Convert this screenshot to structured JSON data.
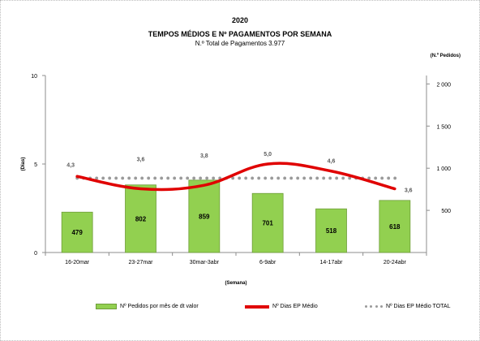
{
  "title": "2020",
  "subtitle": "TEMPOS MÉDIOS E Nº PAGAMENTOS POR SEMANA",
  "note": "N.º Total de Pagamentos 3.977",
  "chart_data": {
    "type": "bar",
    "categories": [
      "16-20mar",
      "23-27mar",
      "30mar-3abr",
      "6-9abr",
      "14-17abr",
      "20-24abr"
    ],
    "series": [
      {
        "name": "Nº Pedidos por mês de dt valor",
        "type": "bar",
        "axis": "right",
        "values": [
          479,
          802,
          859,
          701,
          518,
          618
        ],
        "color": "#92d050"
      },
      {
        "name": "Nº Dias EP Médio",
        "type": "line",
        "axis": "left",
        "values": [
          4.3,
          3.6,
          3.8,
          5.0,
          4.6,
          3.6
        ],
        "value_labels": [
          "4,3",
          "3,6",
          "3,8",
          "5,0",
          "4,6",
          "3,6"
        ],
        "color": "#e00000"
      },
      {
        "name": "Nº Dias EP Médio TOTAL",
        "type": "dotted-line",
        "axis": "left",
        "values": [
          4.2,
          4.2,
          4.2,
          4.2,
          4.2,
          4.2
        ],
        "color": "#9a9a9a"
      }
    ],
    "xlabel": "(Semana)",
    "ylabel": "(Dias)",
    "y2label": "(N.º Pedidos)",
    "ylim": [
      0,
      10
    ],
    "yticks": [
      0,
      5,
      10
    ],
    "y2lim": [
      0,
      2100
    ],
    "y2ticks": [
      500,
      1000,
      1500,
      2000
    ],
    "y2tick_labels": [
      "500",
      "1 000",
      "1 500",
      "2 000"
    ],
    "grid": false,
    "legend_position": "bottom"
  }
}
